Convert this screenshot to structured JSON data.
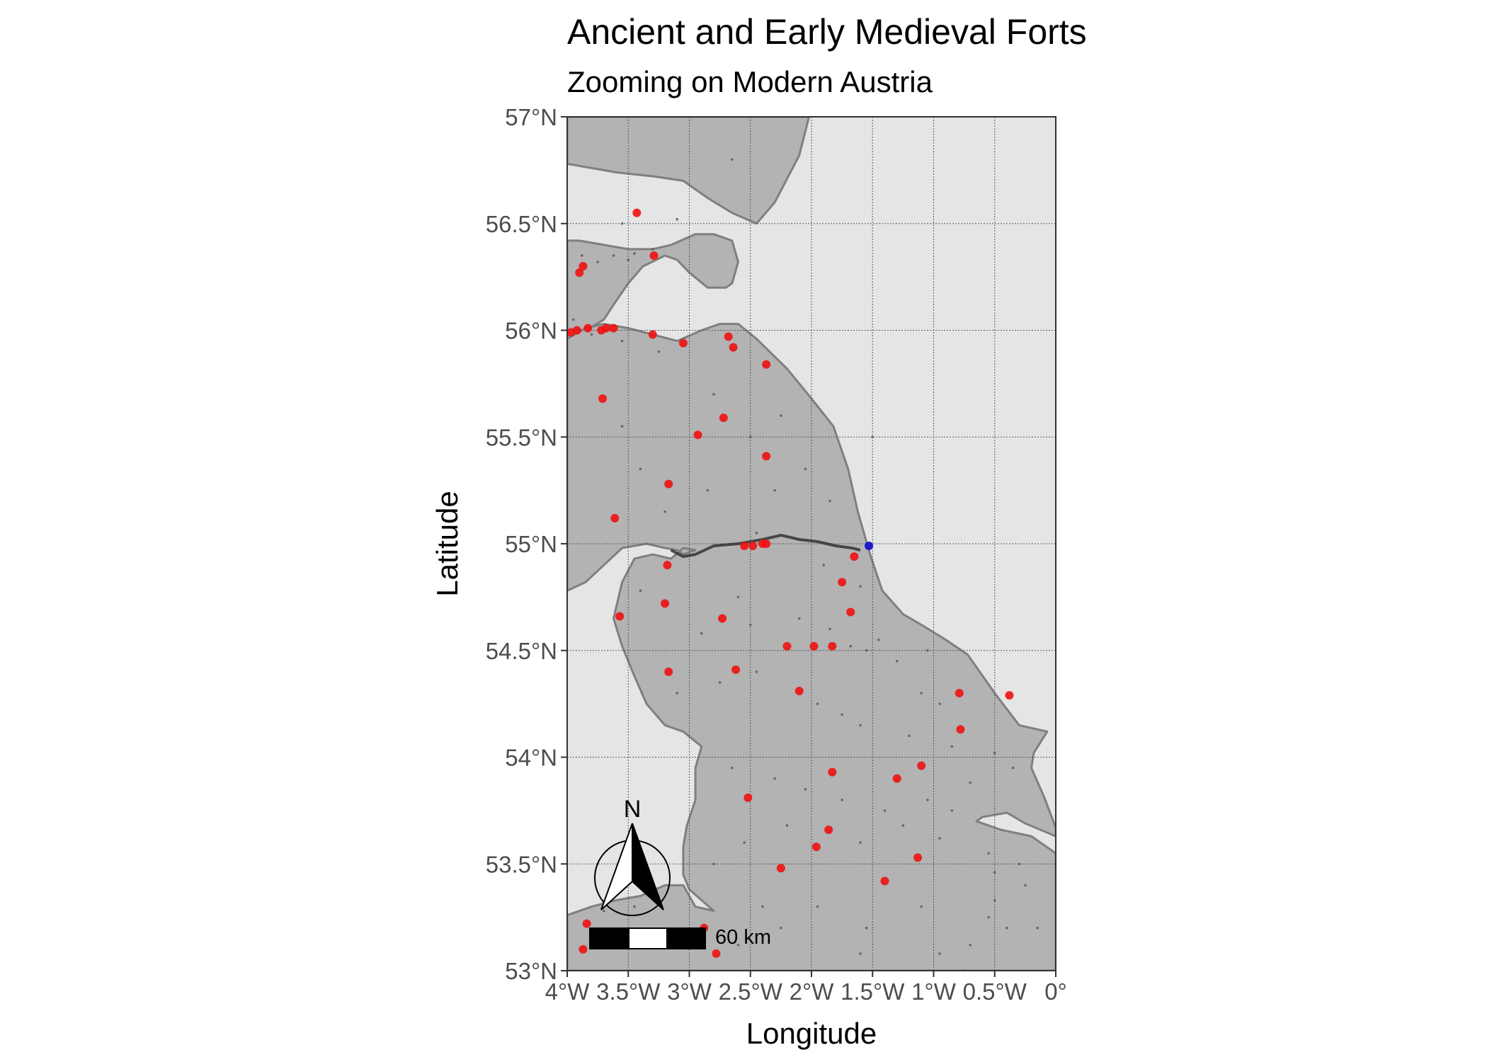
{
  "title": "Ancient and Early Medieval Forts",
  "subtitle": "Zooming on Modern Austria",
  "colors": {
    "sea": "#e5e5e5",
    "land": "#b3b3b3",
    "coast": "#7f7f7f",
    "grid": "#4d4d4d",
    "fort": "#ee1111",
    "highlight": "#1a1acc",
    "site": "#555555"
  },
  "scale_bar": {
    "label": "60 km"
  },
  "north_arrow": {
    "label": "N",
    "icon": "north-arrow-icon"
  },
  "chart_data": {
    "type": "scatter",
    "xlabel": "Longitude",
    "ylabel": "Latitude",
    "xlim": [
      -4,
      0
    ],
    "ylim": [
      53,
      57
    ],
    "grid": true,
    "x_ticks": [
      {
        "value": -4,
        "label": "4°W"
      },
      {
        "value": -3.5,
        "label": "3.5°W"
      },
      {
        "value": -3,
        "label": "3°W"
      },
      {
        "value": -2.5,
        "label": "2.5°W"
      },
      {
        "value": -2,
        "label": "2°W"
      },
      {
        "value": -1.5,
        "label": "1.5°W"
      },
      {
        "value": -1,
        "label": "1°W"
      },
      {
        "value": -0.5,
        "label": "0.5°W"
      },
      {
        "value": 0,
        "label": "0°"
      }
    ],
    "y_ticks": [
      {
        "value": 57,
        "label": "57°N"
      },
      {
        "value": 56.5,
        "label": "56.5°N"
      },
      {
        "value": 56,
        "label": "56°N"
      },
      {
        "value": 55.5,
        "label": "55.5°N"
      },
      {
        "value": 55,
        "label": "55°N"
      },
      {
        "value": 54.5,
        "label": "54.5°N"
      },
      {
        "value": 54,
        "label": "54°N"
      },
      {
        "value": 53.5,
        "label": "53.5°N"
      },
      {
        "value": 53,
        "label": "53°N"
      }
    ],
    "land": [
      [
        [
          -4,
          56.78
        ],
        [
          -3.6,
          56.74
        ],
        [
          -3.28,
          56.72
        ],
        [
          -3.05,
          56.7
        ],
        [
          -2.85,
          56.62
        ],
        [
          -2.65,
          56.55
        ],
        [
          -2.45,
          56.5
        ],
        [
          -2.3,
          56.6
        ],
        [
          -2.1,
          56.82
        ],
        [
          -2.02,
          57
        ],
        [
          -4,
          57
        ]
      ],
      [
        [
          -4,
          56.42
        ],
        [
          -3.9,
          56.42
        ],
        [
          -3.7,
          56.4
        ],
        [
          -3.5,
          56.38
        ],
        [
          -3.3,
          56.38
        ],
        [
          -3.15,
          56.4
        ],
        [
          -2.95,
          56.45
        ],
        [
          -2.8,
          56.45
        ],
        [
          -2.65,
          56.42
        ],
        [
          -2.6,
          56.32
        ],
        [
          -2.65,
          56.22
        ],
        [
          -2.7,
          56.2
        ],
        [
          -2.85,
          56.2
        ],
        [
          -3.0,
          56.27
        ],
        [
          -3.1,
          56.33
        ],
        [
          -3.2,
          56.35
        ],
        [
          -3.38,
          56.3
        ],
        [
          -3.5,
          56.22
        ],
        [
          -3.62,
          56.12
        ],
        [
          -3.7,
          56.05
        ],
        [
          -3.85,
          56.0
        ],
        [
          -4,
          55.96
        ]
      ],
      [
        [
          -4,
          55.96
        ],
        [
          -3.85,
          56.01
        ],
        [
          -3.7,
          56.03
        ],
        [
          -3.5,
          56.01
        ],
        [
          -3.3,
          55.98
        ],
        [
          -3.1,
          55.95
        ],
        [
          -2.9,
          56.0
        ],
        [
          -2.75,
          56.03
        ],
        [
          -2.6,
          56.03
        ],
        [
          -2.45,
          55.96
        ],
        [
          -2.2,
          55.82
        ],
        [
          -2.0,
          55.68
        ],
        [
          -1.82,
          55.55
        ],
        [
          -1.7,
          55.35
        ],
        [
          -1.62,
          55.15
        ],
        [
          -1.52,
          54.95
        ],
        [
          -1.42,
          54.78
        ],
        [
          -1.25,
          54.67
        ],
        [
          -1.1,
          54.62
        ],
        [
          -0.9,
          54.55
        ],
        [
          -0.72,
          54.48
        ],
        [
          -0.5,
          54.3
        ],
        [
          -0.3,
          54.15
        ],
        [
          -0.07,
          54.12
        ],
        [
          -0.18,
          54.02
        ],
        [
          -0.2,
          53.95
        ],
        [
          -0.1,
          53.82
        ],
        [
          0,
          53.67
        ],
        [
          0,
          53.63
        ],
        [
          -0.25,
          53.69
        ],
        [
          -0.4,
          53.74
        ],
        [
          -0.6,
          53.72
        ],
        [
          -0.65,
          53.7
        ],
        [
          -0.45,
          53.66
        ],
        [
          -0.2,
          53.63
        ],
        [
          0,
          53.55
        ],
        [
          0,
          53
        ],
        [
          -4,
          53
        ],
        [
          -4,
          53.26
        ],
        [
          -3.8,
          53.3
        ],
        [
          -3.6,
          53.33
        ],
        [
          -3.4,
          53.35
        ],
        [
          -3.2,
          53.4
        ],
        [
          -3.05,
          53.4
        ],
        [
          -2.95,
          53.3
        ],
        [
          -2.8,
          53.28
        ],
        [
          -2.9,
          53.33
        ],
        [
          -3.0,
          53.38
        ],
        [
          -3.05,
          53.45
        ],
        [
          -3.05,
          53.58
        ],
        [
          -3.02,
          53.68
        ],
        [
          -2.95,
          53.8
        ],
        [
          -2.95,
          53.95
        ],
        [
          -2.9,
          54.05
        ],
        [
          -3.05,
          54.12
        ],
        [
          -3.2,
          54.15
        ],
        [
          -3.35,
          54.25
        ],
        [
          -3.45,
          54.38
        ],
        [
          -3.55,
          54.52
        ],
        [
          -3.62,
          54.65
        ],
        [
          -3.55,
          54.82
        ],
        [
          -3.45,
          54.93
        ],
        [
          -3.3,
          54.95
        ],
        [
          -3.15,
          54.93
        ],
        [
          -3.05,
          54.98
        ],
        [
          -2.95,
          54.97
        ],
        [
          -3.05,
          54.95
        ],
        [
          -3.1,
          54.97
        ],
        [
          -3.2,
          54.98
        ],
        [
          -3.35,
          55.0
        ],
        [
          -3.55,
          54.98
        ],
        [
          -3.7,
          54.9
        ],
        [
          -3.85,
          54.82
        ],
        [
          -4,
          54.78
        ]
      ]
    ],
    "wall": [
      [
        -3.15,
        54.97
      ],
      [
        -3.05,
        54.94
      ],
      [
        -2.95,
        54.95
      ],
      [
        -2.8,
        54.99
      ],
      [
        -2.6,
        55.0
      ],
      [
        -2.4,
        55.02
      ],
      [
        -2.25,
        55.04
      ],
      [
        -2.1,
        55.02
      ],
      [
        -1.95,
        55.01
      ],
      [
        -1.8,
        54.99
      ],
      [
        -1.67,
        54.98
      ],
      [
        -1.6,
        54.97
      ]
    ],
    "series": [
      {
        "name": "",
        "role": "fort",
        "points": [
          [
            -3.43,
            56.55
          ],
          [
            -3.29,
            56.35
          ],
          [
            -3.87,
            56.3
          ],
          [
            -3.9,
            56.27
          ],
          [
            -3.97,
            55.99
          ],
          [
            -3.92,
            56.0
          ],
          [
            -3.83,
            56.01
          ],
          [
            -3.72,
            56.0
          ],
          [
            -3.68,
            56.01
          ],
          [
            -3.62,
            56.01
          ],
          [
            -3.3,
            55.98
          ],
          [
            -3.05,
            55.94
          ],
          [
            -2.68,
            55.97
          ],
          [
            -2.64,
            55.92
          ],
          [
            -2.37,
            55.84
          ],
          [
            -3.71,
            55.68
          ],
          [
            -2.72,
            55.59
          ],
          [
            -2.93,
            55.51
          ],
          [
            -2.37,
            55.41
          ],
          [
            -3.17,
            55.28
          ],
          [
            -3.61,
            55.12
          ],
          [
            -2.55,
            54.99
          ],
          [
            -2.48,
            54.99
          ],
          [
            -2.4,
            55.0
          ],
          [
            -2.37,
            55.0
          ],
          [
            -1.65,
            54.94
          ],
          [
            -3.18,
            54.9
          ],
          [
            -1.75,
            54.82
          ],
          [
            -3.2,
            54.72
          ],
          [
            -3.57,
            54.66
          ],
          [
            -2.73,
            54.65
          ],
          [
            -1.68,
            54.68
          ],
          [
            -2.2,
            54.52
          ],
          [
            -1.98,
            54.52
          ],
          [
            -1.83,
            54.52
          ],
          [
            -3.17,
            54.4
          ],
          [
            -2.62,
            54.41
          ],
          [
            -2.1,
            54.31
          ],
          [
            -0.79,
            54.3
          ],
          [
            -0.38,
            54.29
          ],
          [
            -0.78,
            54.13
          ],
          [
            -1.1,
            53.96
          ],
          [
            -1.83,
            53.93
          ],
          [
            -1.3,
            53.9
          ],
          [
            -2.52,
            53.81
          ],
          [
            -1.86,
            53.66
          ],
          [
            -1.96,
            53.58
          ],
          [
            -1.13,
            53.53
          ],
          [
            -2.25,
            53.48
          ],
          [
            -1.4,
            53.42
          ],
          [
            -3.84,
            53.22
          ],
          [
            -3.87,
            53.1
          ],
          [
            -2.78,
            53.08
          ],
          [
            -2.88,
            53.2
          ]
        ]
      },
      {
        "name": "",
        "role": "highlight",
        "points": [
          [
            -1.53,
            54.99
          ]
        ]
      },
      {
        "name": "",
        "role": "site",
        "points": [
          [
            -3.55,
            56.5
          ],
          [
            -3.1,
            56.52
          ],
          [
            -2.65,
            56.8
          ],
          [
            -3.75,
            56.32
          ],
          [
            -3.62,
            56.35
          ],
          [
            -3.5,
            56.33
          ],
          [
            -3.45,
            56.36
          ],
          [
            -3.3,
            56.38
          ],
          [
            -3.88,
            56.35
          ],
          [
            -3.95,
            56.05
          ],
          [
            -3.8,
            55.98
          ],
          [
            -3.55,
            55.95
          ],
          [
            -3.25,
            55.9
          ],
          [
            -2.8,
            55.7
          ],
          [
            -3.55,
            55.55
          ],
          [
            -3.4,
            55.35
          ],
          [
            -2.5,
            55.5
          ],
          [
            -2.25,
            55.6
          ],
          [
            -2.05,
            55.35
          ],
          [
            -1.85,
            55.2
          ],
          [
            -3.2,
            55.15
          ],
          [
            -2.85,
            55.25
          ],
          [
            -2.45,
            55.05
          ],
          [
            -1.5,
            55.5
          ],
          [
            -2.3,
            55.25
          ],
          [
            -3.4,
            54.78
          ],
          [
            -2.6,
            54.75
          ],
          [
            -1.9,
            54.9
          ],
          [
            -1.6,
            54.8
          ],
          [
            -2.9,
            54.58
          ],
          [
            -2.5,
            54.62
          ],
          [
            -2.1,
            54.65
          ],
          [
            -1.85,
            54.6
          ],
          [
            -1.68,
            54.52
          ],
          [
            -1.55,
            54.5
          ],
          [
            -1.45,
            54.55
          ],
          [
            -1.3,
            54.45
          ],
          [
            -1.1,
            54.3
          ],
          [
            -0.95,
            54.25
          ],
          [
            -3.1,
            54.3
          ],
          [
            -2.75,
            54.35
          ],
          [
            -2.45,
            54.4
          ],
          [
            -1.95,
            54.25
          ],
          [
            -1.75,
            54.2
          ],
          [
            -1.6,
            54.15
          ],
          [
            -1.2,
            54.1
          ],
          [
            -0.85,
            54.05
          ],
          [
            -0.5,
            54.02
          ],
          [
            -0.35,
            53.95
          ],
          [
            -0.7,
            53.88
          ],
          [
            -1.05,
            53.8
          ],
          [
            -1.4,
            53.75
          ],
          [
            -1.75,
            53.8
          ],
          [
            -2.05,
            53.85
          ],
          [
            -2.3,
            53.9
          ],
          [
            -2.65,
            53.95
          ],
          [
            -2.2,
            53.68
          ],
          [
            -2.55,
            53.6
          ],
          [
            -2.8,
            53.5
          ],
          [
            -1.6,
            53.6
          ],
          [
            -1.25,
            53.68
          ],
          [
            -0.95,
            53.62
          ],
          [
            -0.55,
            53.55
          ],
          [
            -0.5,
            53.46
          ],
          [
            -0.5,
            53.33
          ],
          [
            -0.55,
            53.25
          ],
          [
            -0.4,
            53.2
          ],
          [
            -0.15,
            53.2
          ],
          [
            -0.25,
            53.4
          ],
          [
            -0.3,
            53.5
          ],
          [
            -1.1,
            53.3
          ],
          [
            -1.55,
            53.2
          ],
          [
            -1.95,
            53.3
          ],
          [
            -2.25,
            53.2
          ],
          [
            -2.4,
            53.3
          ],
          [
            -2.6,
            53.12
          ],
          [
            -3.7,
            53.28
          ],
          [
            -3.45,
            53.3
          ],
          [
            -3.3,
            53.15
          ],
          [
            -1.6,
            53.08
          ],
          [
            -0.95,
            53.08
          ],
          [
            -0.7,
            53.12
          ],
          [
            -0.75,
            53.0
          ],
          [
            -1.05,
            54.5
          ],
          [
            -0.85,
            53.75
          ]
        ]
      }
    ]
  }
}
